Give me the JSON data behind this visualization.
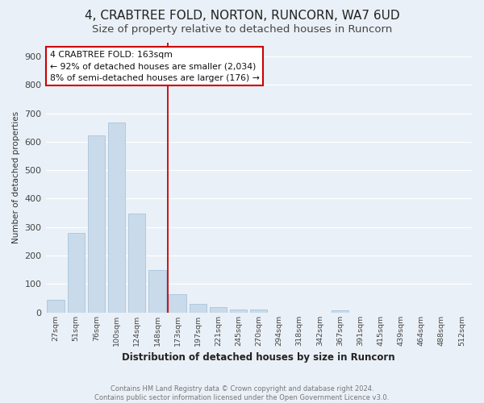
{
  "title": "4, CRABTREE FOLD, NORTON, RUNCORN, WA7 6UD",
  "subtitle": "Size of property relative to detached houses in Runcorn",
  "xlabel": "Distribution of detached houses by size in Runcorn",
  "ylabel": "Number of detached properties",
  "footnote": "Contains HM Land Registry data © Crown copyright and database right 2024.\nContains public sector information licensed under the Open Government Licence v3.0.",
  "categories": [
    "27sqm",
    "51sqm",
    "76sqm",
    "100sqm",
    "124sqm",
    "148sqm",
    "173sqm",
    "197sqm",
    "221sqm",
    "245sqm",
    "270sqm",
    "294sqm",
    "318sqm",
    "342sqm",
    "367sqm",
    "391sqm",
    "415sqm",
    "439sqm",
    "464sqm",
    "488sqm",
    "512sqm"
  ],
  "values": [
    45,
    278,
    622,
    668,
    348,
    150,
    65,
    30,
    18,
    10,
    10,
    0,
    0,
    0,
    6,
    0,
    0,
    0,
    0,
    0,
    0
  ],
  "bar_color": "#c9daea",
  "bar_edge_color": "#a8c4dc",
  "vline_x": 5.5,
  "vline_color": "#cc0000",
  "annotation_title": "4 CRABTREE FOLD: 163sqm",
  "annotation_line1": "← 92% of detached houses are smaller (2,034)",
  "annotation_line2": "8% of semi-detached houses are larger (176) →",
  "annotation_box_color": "#cc0000",
  "annotation_bg": "#ffffff",
  "ylim": [
    0,
    950
  ],
  "yticks": [
    0,
    100,
    200,
    300,
    400,
    500,
    600,
    700,
    800,
    900
  ],
  "bg_color": "#eaf0f7",
  "plot_bg": "#eaf0f7",
  "grid_color": "#ffffff",
  "title_fontsize": 11,
  "subtitle_fontsize": 9.5
}
